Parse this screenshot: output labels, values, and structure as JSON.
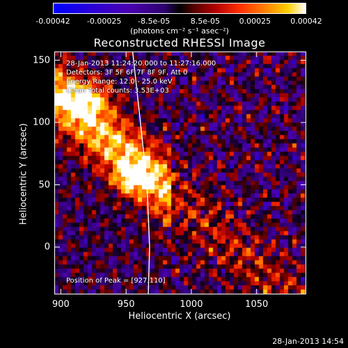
{
  "colorbar": {
    "ticks": [
      "-0.00042",
      "-0.00025",
      "-8.5e-05",
      "8.5e-05",
      "0.00025",
      "0.00042"
    ],
    "tick_values": [
      -0.00042,
      -0.00025,
      -8.5e-05,
      8.5e-05,
      0.00025,
      0.00042
    ],
    "unit": "(photons cm⁻² s⁻¹ asec⁻²)",
    "range": [
      -0.00042,
      0.00042
    ]
  },
  "annotations": {
    "time_range": "28-Jan-2013 11:24:20.000 to 11:27:16.000",
    "detectors": "Detectors: 3F 5F 6F 7F 8F 9F, Att 0",
    "energy_range": "Energy Range: 12.0 - 25.0 keV",
    "clean_counts": "Clean     Total counts: 3.53E+03",
    "peak_position": "Position of Peak = [927,110]"
  },
  "footer": {
    "date": "28-Jan-2013 14:54"
  },
  "chart_data": {
    "type": "heatmap",
    "title": "Reconstructed RHESSI Image",
    "xlabel": "Heliocentric X (arcsec)",
    "ylabel": "Heliocentric Y (arcsec)",
    "xlim": [
      895,
      1088
    ],
    "ylim": [
      -38,
      157
    ],
    "xticks": [
      900,
      950,
      1000,
      1050
    ],
    "yticks": [
      0,
      50,
      100,
      150
    ],
    "peak": [
      927,
      110
    ],
    "limb_curve": [
      [
        967,
        -38
      ],
      [
        968,
        0
      ],
      [
        966,
        50
      ],
      [
        961,
        100
      ],
      [
        955,
        157
      ]
    ],
    "colorbar_range": [
      -0.00042,
      0.00042
    ]
  }
}
